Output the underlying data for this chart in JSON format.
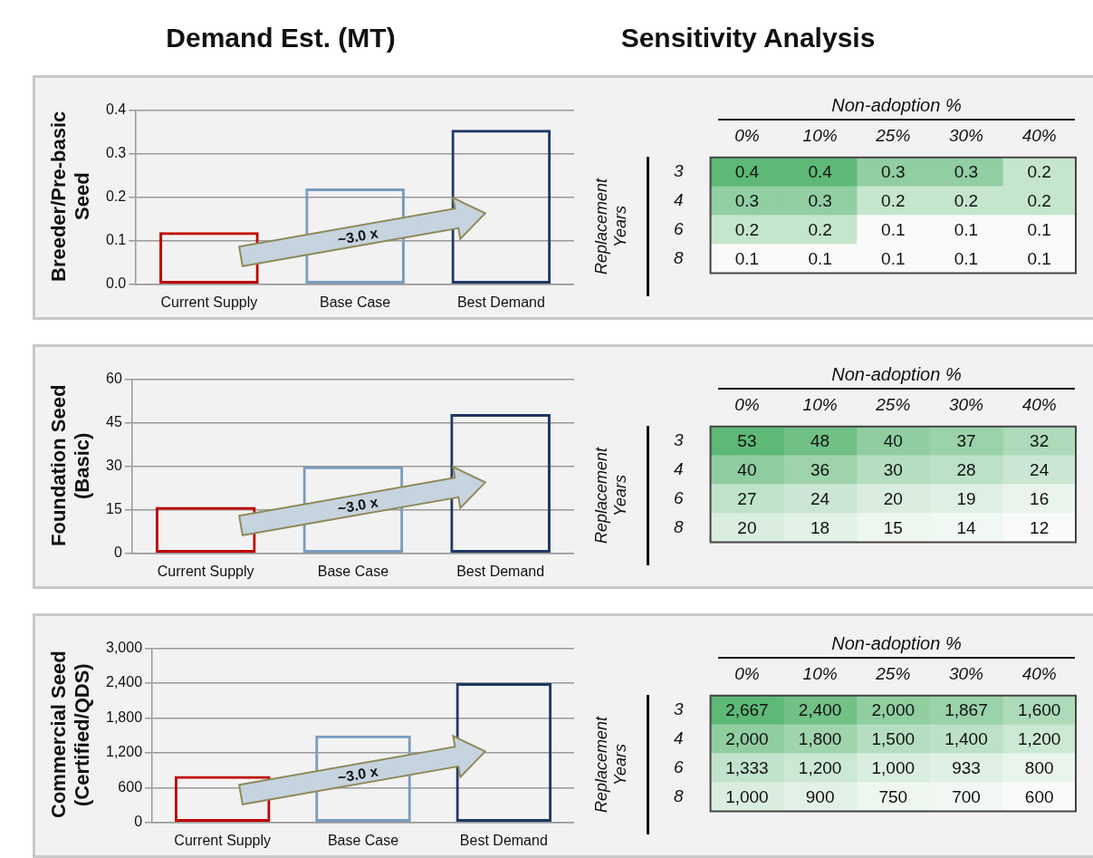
{
  "chart_data": [
    {
      "type": "bar",
      "title": "Demand Est. (MT)",
      "ylabel": "Breeder/Pre-basic Seed",
      "categories": [
        "Current Supply",
        "Base Case",
        "Best Demand"
      ],
      "values": [
        0.12,
        0.22,
        0.355
      ],
      "colors": [
        "#c00000",
        "#7a9cbf",
        "#1f3864"
      ],
      "ylim": [
        0,
        0.4
      ],
      "yticks": [
        {
          "value": 0,
          "label": "0.0"
        },
        0.1,
        0.2,
        0.3,
        0.4
      ],
      "grid": "y",
      "annotations": [
        "~3.0 x"
      ]
    },
    {
      "type": "heatmap",
      "title": "Sensitivity Analysis",
      "xlabel": "Non-adoption %",
      "ylabel": "Replacement Years",
      "categories": [
        "0%",
        "10%",
        "25%",
        "30%",
        "40%"
      ],
      "y_categories": [
        "3",
        "4",
        "6",
        "8"
      ],
      "data_labels": true,
      "cells": [
        [
          0.4,
          0.4,
          0.3,
          0.3,
          0.2
        ],
        [
          0.3,
          0.3,
          0.2,
          0.2,
          0.2
        ],
        [
          0.2,
          0.2,
          0.1,
          0.1,
          0.1
        ],
        [
          0.1,
          0.1,
          0.1,
          0.1,
          0.1
        ]
      ]
    },
    {
      "type": "bar",
      "ylabel": "Foundation Seed (Basic)",
      "categories": [
        "Current Supply",
        "Base Case",
        "Best Demand"
      ],
      "values": [
        16,
        30,
        48
      ],
      "colors": [
        "#c00000",
        "#7a9cbf",
        "#1f3864"
      ],
      "ylim": [
        0,
        60
      ],
      "yticks": [
        0,
        15,
        30,
        45,
        60
      ],
      "grid": "y",
      "annotations": [
        "~3.0 x"
      ]
    },
    {
      "type": "heatmap",
      "xlabel": "Non-adoption %",
      "ylabel": "Replacement Years",
      "categories": [
        "0%",
        "10%",
        "25%",
        "30%",
        "40%"
      ],
      "y_categories": [
        "3",
        "4",
        "6",
        "8"
      ],
      "data_labels": true,
      "cells": [
        [
          53,
          48,
          40,
          37,
          32
        ],
        [
          40,
          36,
          30,
          28,
          24
        ],
        [
          27,
          24,
          20,
          19,
          16
        ],
        [
          20,
          18,
          15,
          14,
          12
        ]
      ]
    },
    {
      "type": "bar",
      "ylabel": "Commercial Seed (Certified/QDS)",
      "categories": [
        "Current Supply",
        "Base Case",
        "Best Demand"
      ],
      "values": [
        800,
        1500,
        2400
      ],
      "colors": [
        "#c00000",
        "#7a9cbf",
        "#1f3864"
      ],
      "ylim": [
        0,
        3000
      ],
      "yticks": [
        0,
        600,
        {
          "value": 1200,
          "label": "1,200"
        },
        {
          "value": 1800,
          "label": "1,800"
        },
        {
          "value": 2400,
          "label": "2,400"
        },
        {
          "value": 3000,
          "label": "3,000"
        }
      ],
      "grid": "y",
      "annotations": [
        "~3.0 x"
      ]
    },
    {
      "type": "heatmap",
      "xlabel": "Non-adoption %",
      "ylabel": "Replacement Years",
      "categories": [
        "0%",
        "10%",
        "25%",
        "30%",
        "40%"
      ],
      "y_categories": [
        "3",
        "4",
        "6",
        "8"
      ],
      "cells": [
        [
          2667,
          2400,
          2000,
          1867,
          1600
        ],
        [
          2000,
          1800,
          1500,
          1400,
          1200
        ],
        [
          1333,
          1200,
          1000,
          933,
          800
        ],
        [
          1000,
          900,
          750,
          700,
          600
        ]
      ],
      "cell_labels": [
        [
          "2,667",
          "2,400",
          "2,000",
          "1,867",
          "1,600"
        ],
        [
          "2,000",
          "1,800",
          "1,500",
          "1,400",
          "1,200"
        ],
        [
          "1,333",
          "1,200",
          "1,000",
          "933",
          "800"
        ],
        [
          "1,000",
          "900",
          "750",
          "700",
          "600"
        ]
      ]
    }
  ]
}
